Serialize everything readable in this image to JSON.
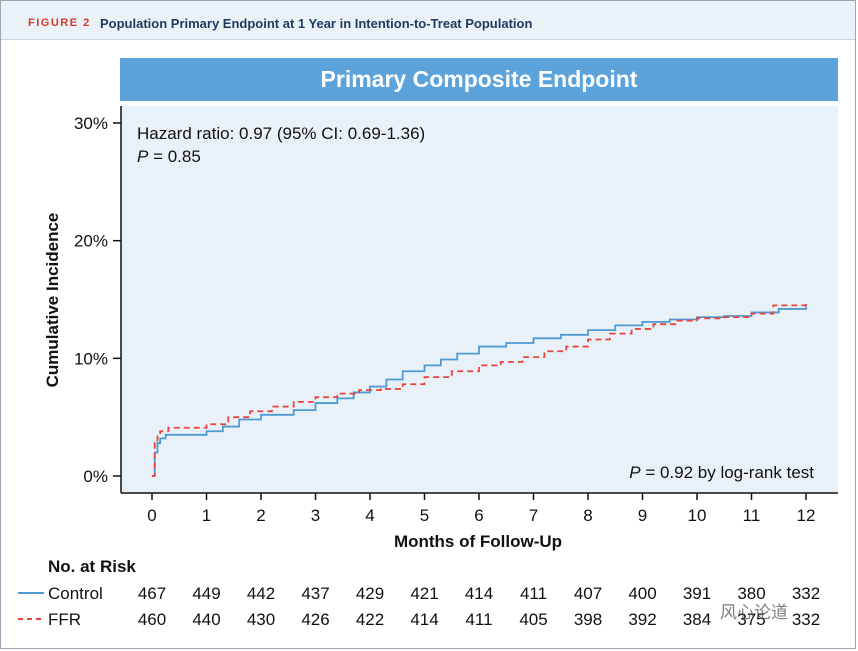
{
  "header": {
    "figure_label": "FIGURE 2",
    "title": "Population Primary Endpoint at 1 Year in Intention-to-Treat Population"
  },
  "chart_data": {
    "type": "line",
    "title": "Primary Composite Endpoint",
    "xlabel": "Months of Follow-Up",
    "ylabel": "Cumulative Incidence",
    "x_ticks": [
      "0",
      "1",
      "2",
      "3",
      "4",
      "5",
      "6",
      "7",
      "8",
      "9",
      "10",
      "11",
      "12"
    ],
    "y_ticks": [
      "0%",
      "10%",
      "20%",
      "30%"
    ],
    "xlim": [
      0,
      12
    ],
    "ylim": [
      0,
      30
    ],
    "annotations": {
      "hazard_prefix": "Hazard ratio: 0.97 (95% CI: 0.69-1.36)",
      "p_label": "P",
      "p_value": " = 0.85",
      "logrank_p": "P",
      "logrank_text": " = 0.92 by log-rank test"
    },
    "series": [
      {
        "name": "Control",
        "color": "#4f9ad3",
        "style": "solid",
        "x": [
          0,
          0.05,
          0.1,
          0.15,
          0.25,
          0.5,
          1.0,
          1.3,
          1.6,
          2.0,
          2.6,
          3.0,
          3.4,
          3.7,
          4.0,
          4.3,
          4.6,
          5.0,
          5.3,
          5.6,
          6.0,
          6.5,
          7.0,
          7.5,
          8.0,
          8.5,
          9.0,
          9.5,
          10.0,
          10.5,
          11.0,
          11.5,
          12.0
        ],
        "values": [
          0.0,
          2.0,
          2.8,
          3.2,
          3.5,
          3.5,
          3.8,
          4.2,
          4.8,
          5.2,
          5.6,
          6.2,
          6.6,
          7.1,
          7.6,
          8.2,
          8.9,
          9.4,
          9.9,
          10.4,
          11.0,
          11.3,
          11.7,
          12.0,
          12.4,
          12.8,
          13.1,
          13.3,
          13.5,
          13.6,
          13.9,
          14.2,
          14.4
        ]
      },
      {
        "name": "FFR",
        "color": "#e8453c",
        "style": "dashed",
        "x": [
          0,
          0.05,
          0.1,
          0.15,
          0.3,
          0.6,
          1.0,
          1.4,
          1.8,
          2.2,
          2.6,
          3.0,
          3.4,
          3.8,
          4.2,
          4.6,
          5.0,
          5.5,
          6.0,
          6.4,
          6.8,
          7.2,
          7.6,
          8.0,
          8.4,
          8.8,
          9.2,
          9.6,
          10.0,
          10.5,
          11.0,
          11.4,
          12.0
        ],
        "values": [
          0.0,
          2.8,
          3.5,
          3.8,
          4.1,
          4.1,
          4.4,
          5.0,
          5.5,
          5.9,
          6.3,
          6.7,
          7.0,
          7.3,
          7.4,
          7.8,
          8.4,
          8.9,
          9.4,
          9.7,
          10.1,
          10.6,
          11.0,
          11.6,
          12.1,
          12.5,
          12.9,
          13.2,
          13.4,
          13.5,
          13.8,
          14.5,
          14.7
        ]
      }
    ]
  },
  "risk_table": {
    "title": "No. at Risk",
    "rows": [
      {
        "label": "Control",
        "values": [
          "467",
          "449",
          "442",
          "437",
          "429",
          "421",
          "414",
          "411",
          "407",
          "400",
          "391",
          "380",
          "332"
        ]
      },
      {
        "label": "FFR",
        "values": [
          "460",
          "440",
          "430",
          "426",
          "422",
          "414",
          "411",
          "405",
          "398",
          "392",
          "384",
          "375",
          "332"
        ]
      }
    ]
  },
  "watermark": "风心论道"
}
